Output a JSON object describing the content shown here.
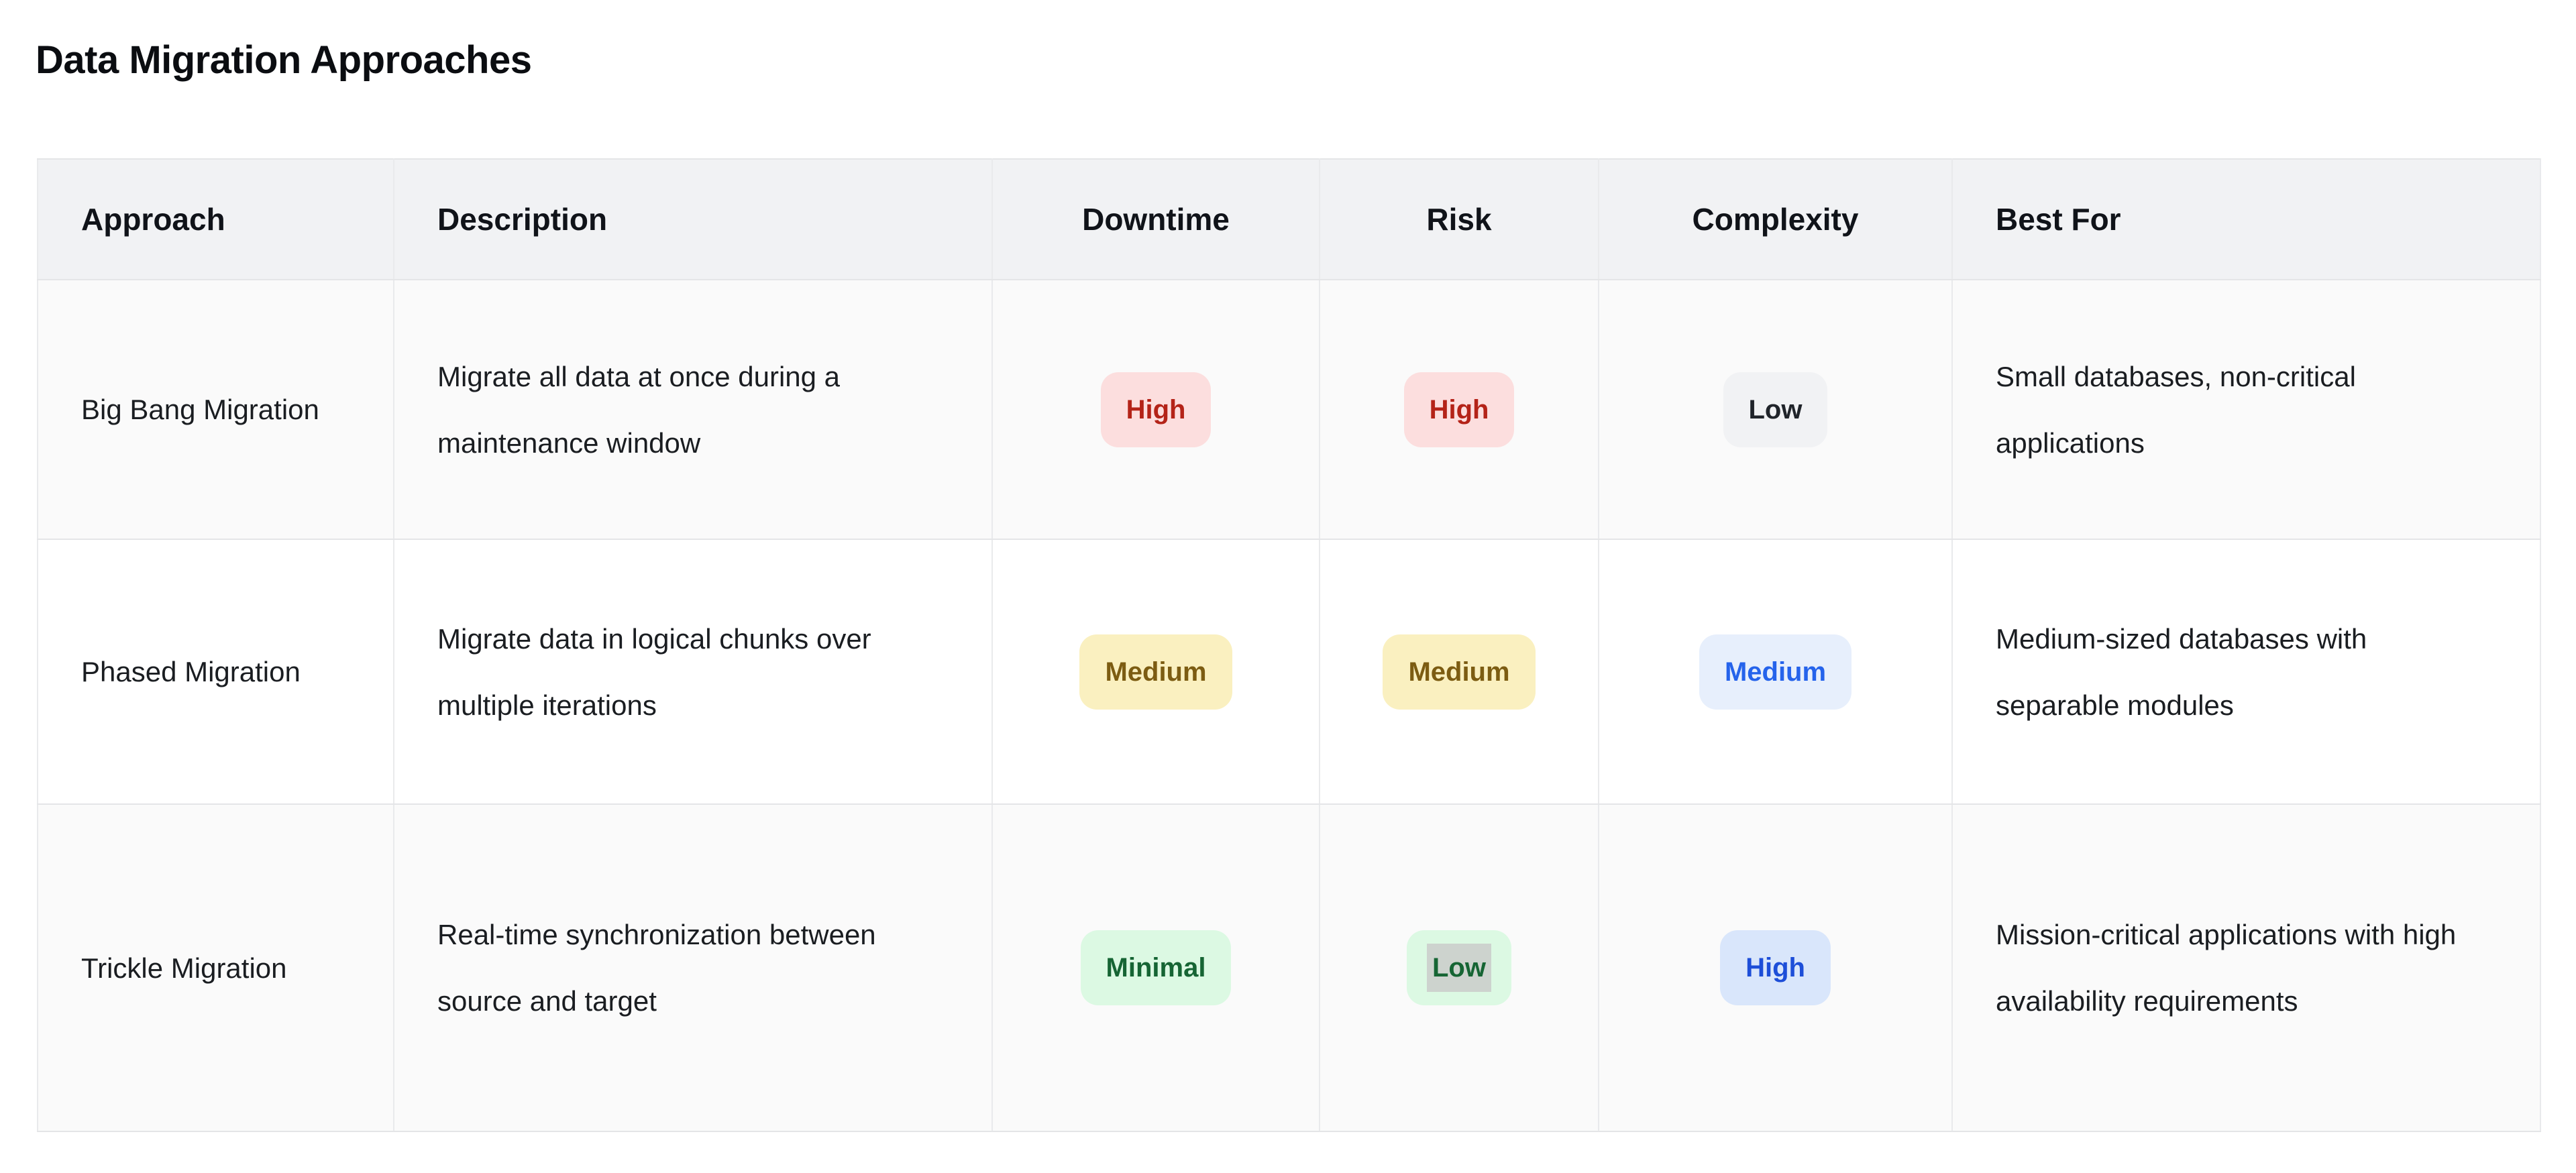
{
  "page": {
    "title": "Data Migration Approaches"
  },
  "table": {
    "columns": {
      "approach": "Approach",
      "description": "Description",
      "downtime": "Downtime",
      "risk": "Risk",
      "complexity": "Complexity",
      "best_for": "Best For"
    },
    "rows": [
      {
        "approach": "Big Bang Migration",
        "description": "Migrate all data at once during a maintenance window",
        "downtime": {
          "label": "High",
          "variant": "red"
        },
        "risk": {
          "label": "High",
          "variant": "red"
        },
        "complexity": {
          "label": "Low",
          "variant": "gray"
        },
        "best_for": "Small databases, non-critical applications"
      },
      {
        "approach": "Phased Migration",
        "description": "Migrate data in logical chunks over multiple iterations",
        "downtime": {
          "label": "Medium",
          "variant": "yellow"
        },
        "risk": {
          "label": "Medium",
          "variant": "yellow"
        },
        "complexity": {
          "label": "Medium",
          "variant": "blue"
        },
        "best_for": "Medium-sized databases with separable modules"
      },
      {
        "approach": "Trickle Migration",
        "description": "Real-time synchronization between source and target",
        "downtime": {
          "label": "Minimal",
          "variant": "green"
        },
        "risk": {
          "label": "Low",
          "variant": "green",
          "text_highlighted": true
        },
        "complexity": {
          "label": "High",
          "variant": "blue-strong"
        },
        "best_for": "Mission-critical applications with high availability requirements"
      }
    ]
  },
  "colors": {
    "badge_red_bg": "#fcdede",
    "badge_red_text": "#b42318",
    "badge_gray_bg": "#f1f2f4",
    "badge_gray_text": "#20242a",
    "badge_yellow_bg": "#faf0c0",
    "badge_yellow_text": "#7c5c12",
    "badge_blue_bg": "#e7effc",
    "badge_blue_text": "#2563eb",
    "badge_green_bg": "#dcf9e3",
    "badge_green_text": "#166534",
    "badge_blue_strong_bg": "#d9e6fb",
    "badge_blue_strong_text": "#1d4ed8",
    "selection_highlight": "#cdd3ce",
    "header_row_bg": "#f1f2f4",
    "stripe_row_bg": "#fafafa",
    "border": "#e4e5e7"
  }
}
